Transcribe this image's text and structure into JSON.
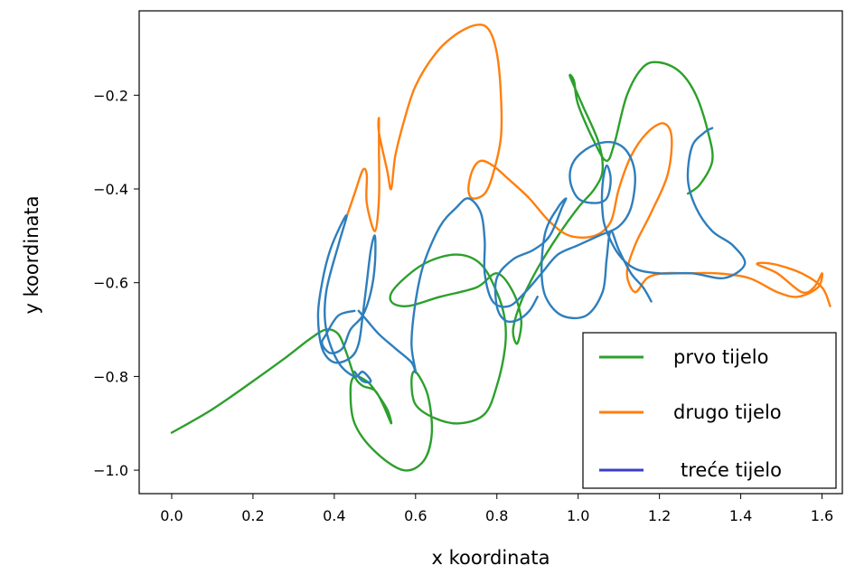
{
  "chart_data": {
    "type": "line",
    "title": "",
    "xlabel": "x koordinata",
    "ylabel": "y koordinata",
    "xlim": [
      -0.08,
      1.65
    ],
    "ylim": [
      -1.05,
      -0.02
    ],
    "xticks": [
      {
        "value": 0.0,
        "label": "0.0"
      },
      {
        "value": 0.2,
        "label": "0.2"
      },
      {
        "value": 0.4,
        "label": "0.4"
      },
      {
        "value": 0.6,
        "label": "0.6"
      },
      {
        "value": 0.8,
        "label": "0.8"
      },
      {
        "value": 1.0,
        "label": "1.0"
      },
      {
        "value": 1.2,
        "label": "1.2"
      },
      {
        "value": 1.4,
        "label": "1.4"
      },
      {
        "value": 1.6,
        "label": "1.6"
      }
    ],
    "yticks": [
      {
        "value": -0.2,
        "label": "−0.2"
      },
      {
        "value": -0.4,
        "label": "−0.4"
      },
      {
        "value": -0.6,
        "label": "−0.6"
      },
      {
        "value": -0.8,
        "label": "−0.8"
      },
      {
        "value": -1.0,
        "label": "−1.0"
      }
    ],
    "grid": false,
    "legend_position": "bottom-right",
    "legend_entries": [
      {
        "label": "prvo tijelo",
        "color": "#2ca02c"
      },
      {
        "label": "drugo tijelo",
        "color": "#ff7f0e"
      },
      {
        "label": "treće tijelo",
        "color": "#3a3fc4"
      }
    ],
    "series": [
      {
        "name": "prvo tijelo",
        "color": "#2ca02c",
        "points": [
          [
            0.0,
            -0.92
          ],
          [
            0.1,
            -0.87
          ],
          [
            0.2,
            -0.81
          ],
          [
            0.28,
            -0.76
          ],
          [
            0.34,
            -0.72
          ],
          [
            0.38,
            -0.7
          ],
          [
            0.41,
            -0.71
          ],
          [
            0.43,
            -0.75
          ],
          [
            0.45,
            -0.8
          ],
          [
            0.47,
            -0.82
          ],
          [
            0.5,
            -0.83
          ],
          [
            0.52,
            -0.86
          ],
          [
            0.54,
            -0.9
          ],
          [
            0.53,
            -0.87
          ],
          [
            0.5,
            -0.83
          ],
          [
            0.48,
            -0.81
          ],
          [
            0.45,
            -0.8
          ],
          [
            0.44,
            -0.83
          ],
          [
            0.45,
            -0.9
          ],
          [
            0.5,
            -0.96
          ],
          [
            0.57,
            -1.0
          ],
          [
            0.62,
            -0.98
          ],
          [
            0.64,
            -0.92
          ],
          [
            0.63,
            -0.84
          ],
          [
            0.6,
            -0.79
          ],
          [
            0.59,
            -0.81
          ],
          [
            0.6,
            -0.86
          ],
          [
            0.65,
            -0.89
          ],
          [
            0.71,
            -0.9
          ],
          [
            0.77,
            -0.88
          ],
          [
            0.8,
            -0.82
          ],
          [
            0.82,
            -0.74
          ],
          [
            0.82,
            -0.68
          ],
          [
            0.8,
            -0.62
          ],
          [
            0.76,
            -0.56
          ],
          [
            0.7,
            -0.54
          ],
          [
            0.62,
            -0.56
          ],
          [
            0.55,
            -0.61
          ],
          [
            0.54,
            -0.64
          ],
          [
            0.58,
            -0.65
          ],
          [
            0.66,
            -0.63
          ],
          [
            0.75,
            -0.61
          ],
          [
            0.8,
            -0.58
          ],
          [
            0.84,
            -0.62
          ],
          [
            0.86,
            -0.68
          ],
          [
            0.85,
            -0.73
          ],
          [
            0.84,
            -0.7
          ],
          [
            0.86,
            -0.64
          ],
          [
            0.9,
            -0.57
          ],
          [
            0.95,
            -0.5
          ],
          [
            1.0,
            -0.44
          ],
          [
            1.04,
            -0.4
          ],
          [
            1.06,
            -0.36
          ],
          [
            1.05,
            -0.3
          ],
          [
            1.01,
            -0.22
          ],
          [
            0.98,
            -0.16
          ],
          [
            0.99,
            -0.17
          ],
          [
            1.0,
            -0.22
          ],
          [
            1.04,
            -0.3
          ],
          [
            1.07,
            -0.34
          ],
          [
            1.09,
            -0.3
          ],
          [
            1.12,
            -0.2
          ],
          [
            1.16,
            -0.14
          ],
          [
            1.2,
            -0.13
          ],
          [
            1.25,
            -0.15
          ],
          [
            1.29,
            -0.2
          ],
          [
            1.32,
            -0.28
          ],
          [
            1.33,
            -0.34
          ],
          [
            1.3,
            -0.39
          ],
          [
            1.27,
            -0.41
          ]
        ]
      },
      {
        "name": "drugo tijelo",
        "color": "#ff7f0e",
        "points": [
          [
            0.43,
            -0.46
          ],
          [
            0.45,
            -0.41
          ],
          [
            0.47,
            -0.36
          ],
          [
            0.48,
            -0.37
          ],
          [
            0.48,
            -0.43
          ],
          [
            0.5,
            -0.49
          ],
          [
            0.51,
            -0.42
          ],
          [
            0.51,
            -0.32
          ],
          [
            0.51,
            -0.25
          ],
          [
            0.51,
            -0.28
          ],
          [
            0.53,
            -0.36
          ],
          [
            0.54,
            -0.4
          ],
          [
            0.55,
            -0.33
          ],
          [
            0.57,
            -0.26
          ],
          [
            0.6,
            -0.18
          ],
          [
            0.65,
            -0.11
          ],
          [
            0.7,
            -0.07
          ],
          [
            0.75,
            -0.05
          ],
          [
            0.78,
            -0.06
          ],
          [
            0.8,
            -0.11
          ],
          [
            0.81,
            -0.2
          ],
          [
            0.81,
            -0.29
          ],
          [
            0.79,
            -0.37
          ],
          [
            0.77,
            -0.41
          ],
          [
            0.74,
            -0.42
          ],
          [
            0.73,
            -0.4
          ],
          [
            0.74,
            -0.36
          ],
          [
            0.76,
            -0.34
          ],
          [
            0.79,
            -0.35
          ],
          [
            0.83,
            -0.38
          ],
          [
            0.88,
            -0.42
          ],
          [
            0.93,
            -0.47
          ],
          [
            0.98,
            -0.5
          ],
          [
            1.04,
            -0.5
          ],
          [
            1.08,
            -0.47
          ],
          [
            1.1,
            -0.4
          ],
          [
            1.13,
            -0.33
          ],
          [
            1.17,
            -0.28
          ],
          [
            1.21,
            -0.26
          ],
          [
            1.23,
            -0.29
          ],
          [
            1.22,
            -0.37
          ],
          [
            1.18,
            -0.45
          ],
          [
            1.14,
            -0.52
          ],
          [
            1.12,
            -0.58
          ],
          [
            1.14,
            -0.62
          ],
          [
            1.17,
            -0.59
          ],
          [
            1.21,
            -0.58
          ],
          [
            1.27,
            -0.58
          ],
          [
            1.34,
            -0.58
          ],
          [
            1.42,
            -0.59
          ],
          [
            1.49,
            -0.62
          ],
          [
            1.54,
            -0.63
          ],
          [
            1.59,
            -0.61
          ],
          [
            1.6,
            -0.58
          ],
          [
            1.58,
            -0.61
          ],
          [
            1.55,
            -0.62
          ],
          [
            1.49,
            -0.58
          ],
          [
            1.44,
            -0.56
          ],
          [
            1.48,
            -0.56
          ],
          [
            1.55,
            -0.58
          ],
          [
            1.6,
            -0.61
          ],
          [
            1.62,
            -0.65
          ]
        ]
      },
      {
        "name": "treće tijelo",
        "color": "#2e7ebc",
        "points": [
          [
            0.46,
            -0.66
          ],
          [
            0.48,
            -0.68
          ],
          [
            0.51,
            -0.71
          ],
          [
            0.55,
            -0.74
          ],
          [
            0.59,
            -0.77
          ],
          [
            0.6,
            -0.79
          ],
          [
            0.59,
            -0.73
          ],
          [
            0.6,
            -0.64
          ],
          [
            0.62,
            -0.56
          ],
          [
            0.66,
            -0.48
          ],
          [
            0.7,
            -0.44
          ],
          [
            0.73,
            -0.42
          ],
          [
            0.76,
            -0.45
          ],
          [
            0.77,
            -0.51
          ],
          [
            0.77,
            -0.58
          ],
          [
            0.79,
            -0.64
          ],
          [
            0.83,
            -0.65
          ],
          [
            0.87,
            -0.62
          ],
          [
            0.91,
            -0.58
          ],
          [
            0.95,
            -0.54
          ],
          [
            1.0,
            -0.52
          ],
          [
            1.05,
            -0.5
          ],
          [
            1.1,
            -0.48
          ],
          [
            1.13,
            -0.44
          ],
          [
            1.14,
            -0.37
          ],
          [
            1.12,
            -0.32
          ],
          [
            1.08,
            -0.3
          ],
          [
            1.03,
            -0.31
          ],
          [
            0.99,
            -0.34
          ],
          [
            0.98,
            -0.38
          ],
          [
            1.0,
            -0.42
          ],
          [
            1.04,
            -0.43
          ],
          [
            1.07,
            -0.42
          ],
          [
            1.08,
            -0.38
          ],
          [
            1.07,
            -0.35
          ],
          [
            1.06,
            -0.39
          ],
          [
            1.06,
            -0.45
          ],
          [
            1.07,
            -0.49
          ],
          [
            1.1,
            -0.54
          ],
          [
            1.14,
            -0.57
          ],
          [
            1.2,
            -0.58
          ],
          [
            1.28,
            -0.58
          ],
          [
            1.36,
            -0.59
          ],
          [
            1.41,
            -0.56
          ],
          [
            1.38,
            -0.52
          ],
          [
            1.33,
            -0.49
          ],
          [
            1.29,
            -0.44
          ],
          [
            1.27,
            -0.38
          ],
          [
            1.28,
            -0.31
          ],
          [
            1.31,
            -0.28
          ],
          [
            1.33,
            -0.27
          ]
        ]
      },
      {
        "name": "treće tijelo (a)",
        "color": "#2e7ebc",
        "points": [
          [
            0.45,
            -0.66
          ],
          [
            0.41,
            -0.67
          ],
          [
            0.38,
            -0.71
          ],
          [
            0.37,
            -0.73
          ],
          [
            0.39,
            -0.75
          ],
          [
            0.42,
            -0.74
          ],
          [
            0.44,
            -0.7
          ],
          [
            0.47,
            -0.67
          ],
          [
            0.49,
            -0.62
          ],
          [
            0.5,
            -0.56
          ],
          [
            0.5,
            -0.5
          ],
          [
            0.49,
            -0.53
          ],
          [
            0.48,
            -0.6
          ],
          [
            0.47,
            -0.67
          ],
          [
            0.46,
            -0.73
          ],
          [
            0.44,
            -0.76
          ],
          [
            0.4,
            -0.77
          ],
          [
            0.37,
            -0.74
          ],
          [
            0.36,
            -0.67
          ],
          [
            0.37,
            -0.6
          ],
          [
            0.39,
            -0.53
          ],
          [
            0.42,
            -0.47
          ],
          [
            0.43,
            -0.46
          ],
          [
            0.41,
            -0.52
          ],
          [
            0.38,
            -0.62
          ],
          [
            0.38,
            -0.7
          ],
          [
            0.41,
            -0.77
          ],
          [
            0.45,
            -0.8
          ],
          [
            0.47,
            -0.79
          ],
          [
            0.49,
            -0.81
          ],
          [
            0.47,
            -0.81
          ],
          [
            0.45,
            -0.79
          ]
        ]
      },
      {
        "name": "treće tijelo (b)",
        "color": "#2e7ebc",
        "points": [
          [
            0.9,
            -0.63
          ],
          [
            0.88,
            -0.66
          ],
          [
            0.85,
            -0.68
          ],
          [
            0.82,
            -0.68
          ],
          [
            0.8,
            -0.65
          ],
          [
            0.8,
            -0.59
          ],
          [
            0.84,
            -0.55
          ],
          [
            0.89,
            -0.53
          ],
          [
            0.93,
            -0.5
          ],
          [
            0.96,
            -0.44
          ],
          [
            0.97,
            -0.42
          ],
          [
            0.95,
            -0.44
          ],
          [
            0.92,
            -0.49
          ],
          [
            0.91,
            -0.57
          ],
          [
            0.92,
            -0.63
          ],
          [
            0.96,
            -0.67
          ],
          [
            1.02,
            -0.67
          ],
          [
            1.06,
            -0.62
          ],
          [
            1.07,
            -0.55
          ],
          [
            1.08,
            -0.49
          ],
          [
            1.1,
            -0.53
          ],
          [
            1.13,
            -0.58
          ],
          [
            1.16,
            -0.61
          ],
          [
            1.18,
            -0.64
          ]
        ]
      }
    ]
  }
}
